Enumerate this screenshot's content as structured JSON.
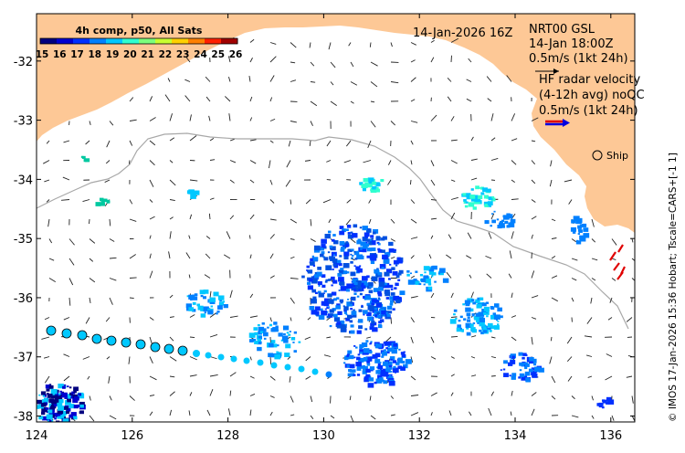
{
  "map": {
    "timestamp": "14-Jan-2026 16Z",
    "colorbar": {
      "title": "4h comp, p50, All Sats",
      "ticks": [
        "15",
        "16",
        "17",
        "18",
        "19",
        "20",
        "21",
        "22",
        "23",
        "24",
        "25",
        "26"
      ],
      "colors": [
        "#00007f",
        "#0000d0",
        "#0030ff",
        "#0080ff",
        "#00c8ff",
        "#30ffd0",
        "#7cff7c",
        "#c8ff30",
        "#ffd000",
        "#ff8000",
        "#ff2000",
        "#a00000"
      ]
    },
    "nrt": {
      "line1": "NRT00 GSL",
      "line2": "14-Jan 18:00Z",
      "line3": "0.5m/s (1kt 24h)"
    },
    "hf": {
      "line1": "HF radar velocity",
      "line2": "(4-12h avg) noQC",
      "line3": "0.5m/s (1kt 24h)"
    },
    "ship_label": "Ship",
    "credit": "© IMOS 17-Jan-2026 15:36 Hobart; Tscale=CARS+[-1 1]",
    "x_ticks": [
      "124",
      "126",
      "128",
      "130",
      "132",
      "134",
      "136"
    ],
    "y_ticks": [
      "-32",
      "-33",
      "-34",
      "-35",
      "-36",
      "-37",
      "-38"
    ],
    "land_color": "#fdc896",
    "x_range": [
      124,
      136.5
    ],
    "y_range": [
      -38.1,
      -31.2
    ]
  }
}
